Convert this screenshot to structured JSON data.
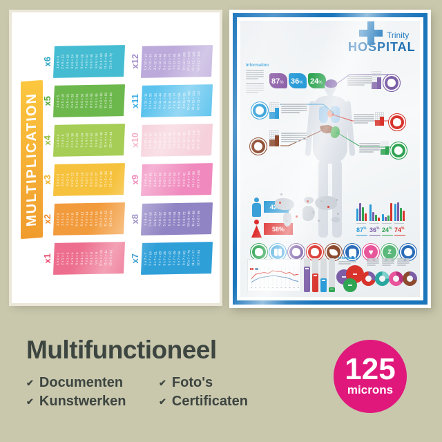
{
  "background_color": "#c9c8ad",
  "multiplication_poster": {
    "title": "MULTIPLICATION",
    "banner_color": "#f6ab35",
    "tables": [
      {
        "label": "x1",
        "color": "#ed6e8e",
        "label_color": "#e8476e",
        "entries": [
          "1 x 1 = 1",
          "2 x 1 = 2",
          "3 x 1 = 3",
          "4 x 1 = 4",
          "5 x 1 = 5",
          "6 x 1 = 6",
          "7 x 1 = 7",
          "8 x 1 = 8",
          "9 x 1 = 9",
          "10 x 1 = 10",
          "11 x 1 = 11",
          "12 x 1 = 12"
        ]
      },
      {
        "label": "x2",
        "color": "#f29b3d",
        "label_color": "#ef8b2c",
        "entries": [
          "1 x 2 = 2",
          "2 x 2 = 4",
          "3 x 2 = 6",
          "4 x 2 = 8",
          "5 x 2 = 10",
          "6 x 2 = 12",
          "7 x 2 = 14",
          "8 x 2 = 16",
          "9 x 2 = 18",
          "10 x 2 = 20",
          "11 x 2 = 22",
          "12 x 2 = 24"
        ]
      },
      {
        "label": "x3",
        "color": "#f6c23d",
        "label_color": "#f2b42c",
        "entries": [
          "1 x 3 = 3",
          "2 x 3 = 6",
          "3 x 3 = 9",
          "4 x 3 = 12",
          "5 x 3 = 15",
          "6 x 3 = 18",
          "7 x 3 = 21",
          "8 x 3 = 24",
          "9 x 3 = 27",
          "10 x 3 = 30",
          "11 x 3 = 33",
          "12 x 3 = 36"
        ]
      },
      {
        "label": "x4",
        "color": "#a6cd55",
        "label_color": "#93bf3d",
        "entries": [
          "1 x 4 = 4",
          "2 x 4 = 8",
          "3 x 4 = 12",
          "4 x 4 = 16",
          "5 x 4 = 20",
          "6 x 4 = 24",
          "7 x 4 = 28",
          "8 x 4 = 32",
          "9 x 4 = 36",
          "10 x 4 = 40",
          "11 x 4 = 44",
          "12 x 4 = 48"
        ]
      },
      {
        "label": "x5",
        "color": "#6db84d",
        "label_color": "#55aa39",
        "entries": [
          "1 x 5 = 5",
          "2 x 5 = 10",
          "3 x 5 = 15",
          "4 x 5 = 20",
          "5 x 5 = 25",
          "6 x 5 = 30",
          "7 x 5 = 35",
          "8 x 5 = 40",
          "9 x 5 = 45",
          "10 x 5 = 50",
          "11 x 5 = 55",
          "12 x 5 = 60"
        ]
      },
      {
        "label": "x6",
        "color": "#45bcd2",
        "label_color": "#2fa8c4",
        "entries": [
          "1 x 6 = 6",
          "2 x 6 = 12",
          "3 x 6 = 18",
          "4 x 6 = 24",
          "5 x 6 = 30",
          "6 x 6 = 36",
          "7 x 6 = 42",
          "8 x 6 = 48",
          "9 x 6 = 54",
          "10 x 6 = 60",
          "11 x 6 = 66",
          "12 x 6 = 72"
        ]
      },
      {
        "label": "x7",
        "color": "#2f9fd8",
        "label_color": "#1f8fc9",
        "entries": [
          "1 x 7 = 7",
          "2 x 7 = 14",
          "3 x 7 = 21",
          "4 x 7 = 28",
          "5 x 7 = 35",
          "6 x 7 = 42",
          "7 x 7 = 49",
          "8 x 7 = 56",
          "9 x 7 = 63",
          "10 x 7 = 70",
          "11 x 7 = 77",
          "12 x 7 = 84"
        ]
      },
      {
        "label": "x8",
        "color": "#9184c4",
        "label_color": "#7a6ab5",
        "entries": [
          "1 x 8 = 8",
          "2 x 8 = 16",
          "3 x 8 = 24",
          "4 x 8 = 32",
          "5 x 8 = 40",
          "6 x 8 = 48",
          "7 x 8 = 56",
          "8 x 8 = 64",
          "9 x 8 = 72",
          "10 x 8 = 80",
          "11 x 8 = 88",
          "12 x 8 = 96"
        ]
      },
      {
        "label": "x9",
        "color": "#f089bd",
        "label_color": "#e96aa8",
        "entries": [
          "1 x 9 = 9",
          "2 x 9 = 18",
          "3 x 9 = 27",
          "4 x 9 = 36",
          "5 x 9 = 45",
          "6 x 9 = 54",
          "7 x 9 = 63",
          "8 x 9 = 72",
          "9 x 9 = 81",
          "10 x 9 = 90",
          "11 x 9 = 99",
          "12 x 9 = 108"
        ]
      },
      {
        "label": "x10",
        "color": "#f6d0da",
        "label_color": "#f4afc4",
        "entries": [
          "1 x 10 = 10",
          "2 x 10 = 20",
          "3 x 10 = 30",
          "4 x 10 = 40",
          "5 x 10 = 50",
          "6 x 10 = 60",
          "7 x 10 = 70",
          "8 x 10 = 80",
          "9 x 10 = 90",
          "10 x 10 = 100",
          "11 x 10 = 110",
          "12 x 10 = 120"
        ]
      },
      {
        "label": "x11",
        "color": "#5cc3ee",
        "label_color": "#3fb0e4",
        "entries": [
          "1 x 11 = 11",
          "2 x 11 = 22",
          "3 x 11 = 33",
          "4 x 11 = 44",
          "5 x 11 = 55",
          "6 x 11 = 66",
          "7 x 11 = 77",
          "8 x 11 = 88",
          "9 x 11 = 99",
          "10 x 11 = 110",
          "11 x 11 = 121",
          "12 x 11 = 132"
        ]
      },
      {
        "label": "x12",
        "color": "#bcaadb",
        "label_color": "#a48fc9",
        "entries": [
          "1 x 12 = 12",
          "2 x 12 = 24",
          "3 x 12 = 36",
          "4 x 12 = 48",
          "5 x 12 = 60",
          "6 x 12 = 72",
          "7 x 12 = 84",
          "8 x 12 = 96",
          "9 x 12 = 108",
          "10 x 12 = 120",
          "11 x 12 = 132",
          "12 x 12 = 144"
        ]
      }
    ]
  },
  "hospital_poster": {
    "border_color": "#1b75bb",
    "logo": {
      "line1": "Trinity",
      "line2": "HOSPITAL",
      "cross_color": "#1b75bb"
    },
    "info_heading": "Information",
    "stat_tags": [
      {
        "value": "87",
        "unit": "%",
        "color": "#8a5aa5"
      },
      {
        "value": "36",
        "unit": "%",
        "color": "#2b9cd8"
      },
      {
        "value": "24",
        "unit": "%",
        "color": "#2fa452"
      }
    ],
    "callouts": [
      {
        "name": "brain",
        "color": "#7b5ea7"
      },
      {
        "name": "lungs",
        "color": "#2b9cd8"
      },
      {
        "name": "heart",
        "color": "#d8342c"
      },
      {
        "name": "liver",
        "color": "#8d4a2f"
      },
      {
        "name": "stomach",
        "color": "#2fa452"
      }
    ],
    "gender": {
      "male": "42%",
      "male_color": "#3aa0d8",
      "female": "58%",
      "female_color": "#dd2c2c"
    },
    "region_stats": [
      {
        "value": "87",
        "unit": "%",
        "color": "#2b9cd8",
        "bars": [
          18,
          26,
          20,
          11
        ]
      },
      {
        "value": "36",
        "unit": "%",
        "color": "#7b5ea7",
        "bars": [
          24,
          13,
          9,
          5
        ]
      },
      {
        "value": "24",
        "unit": "%",
        "color": "#2fa452",
        "bars": [
          10,
          6,
          8,
          26
        ]
      },
      {
        "value": "74",
        "unit": "%",
        "color": "#d8342c",
        "bars": [
          25,
          27,
          19,
          15
        ]
      }
    ],
    "bar_series_colors": [
      "#2b9cd8",
      "#7b5ea7",
      "#2fa452",
      "#d8342c"
    ],
    "organ_icons": [
      {
        "name": "stomach-icon",
        "color": "#2fa452",
        "glyph": ""
      },
      {
        "name": "lungs-icon",
        "color": "#2b9cd8",
        "glyph": ""
      },
      {
        "name": "brain-icon",
        "color": "#7b5ea7",
        "glyph": ""
      },
      {
        "name": "heart-organ-icon",
        "color": "#d8342c",
        "glyph": ""
      },
      {
        "name": "liver-icon",
        "color": "#8d4a2f",
        "glyph": ""
      },
      {
        "name": "tooth-icon",
        "color": "#2b6cb8",
        "glyph": ""
      },
      {
        "name": "heart-icon",
        "color": "#e8559a",
        "glyph": "♥"
      },
      {
        "name": "sleep-icon",
        "color": "#59b87a",
        "glyph": "Z"
      },
      {
        "name": "apple-icon",
        "color": "#2b6cb8",
        "glyph": ""
      }
    ],
    "chart_data": [
      {
        "type": "line",
        "title": "",
        "x": [
          1,
          2,
          3,
          4,
          5,
          6,
          7,
          8,
          9,
          10,
          11,
          12
        ],
        "ylim": [
          0,
          10
        ],
        "series": [
          {
            "name": "series-red",
            "color": "#d8342c",
            "values": [
              4,
              6.5,
              7,
              7.5,
              7,
              8.5,
              8,
              8,
              7,
              7.5,
              6,
              6.5
            ]
          },
          {
            "name": "series-blue",
            "color": "#4a7fb5",
            "values": [
              2,
              3.5,
              4.5,
              5,
              5.2,
              6,
              5.5,
              5,
              4.8,
              4,
              3,
              2.5
            ]
          }
        ]
      },
      {
        "type": "bar",
        "title": "",
        "categories": [
          "1",
          "2",
          "3",
          "4"
        ],
        "series": [
          {
            "name": "fill-ratio",
            "values": [
              0.75,
              0.55,
              0.4,
              0.15
            ]
          }
        ],
        "colors": [
          "#7b5ea7",
          "#d8342c",
          "#2b9cd8",
          "#2fa452"
        ]
      },
      {
        "type": "pie",
        "title": "bubble-cluster",
        "colors": [
          "#7b5ea7",
          "#d8342c",
          "#2fa452"
        ],
        "values": [
          11,
          13,
          10
        ]
      },
      {
        "type": "pie",
        "title": "donuts",
        "values": [
          30,
          25,
          35,
          28
        ],
        "colors": [
          "#d8342c",
          "#2aa7a0",
          "#e8559a",
          "#8d4a2f"
        ],
        "segment_colors": [
          "#7b5ea7",
          "#7fd0cb",
          "#b83280",
          "#7b5ea7"
        ]
      }
    ]
  },
  "footer": {
    "title": "Multifunctioneel",
    "check": "✔",
    "items": [
      "Documenten",
      "Kunstwerken",
      "Foto's",
      "Certificaten"
    ]
  },
  "badge": {
    "value": "125",
    "unit": "microns",
    "color": "#e0187c"
  }
}
